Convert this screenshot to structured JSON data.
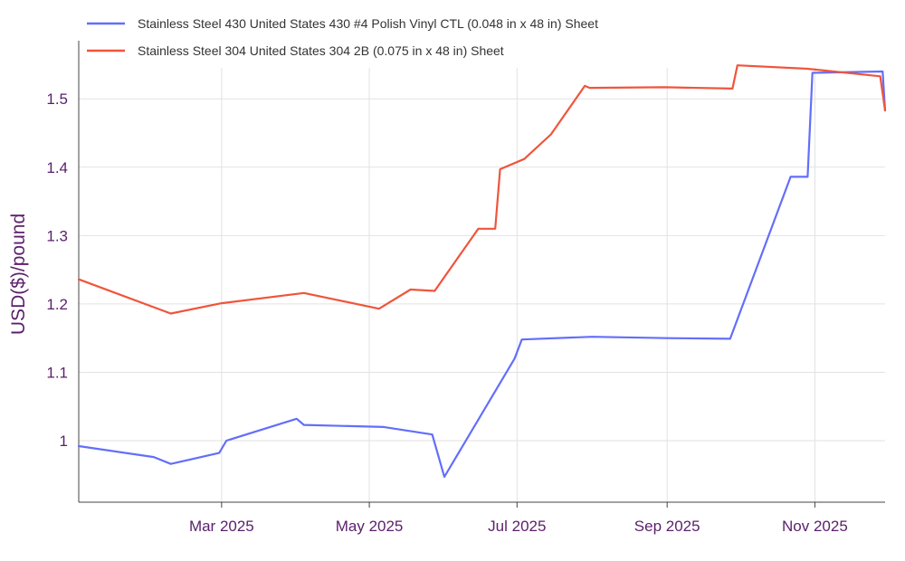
{
  "chart_data": {
    "type": "line",
    "title": "",
    "xlabel": "",
    "ylabel": "USD($)/pound",
    "xlim": [
      "2025-01-01",
      "2025-11-30"
    ],
    "ylim": [
      0.91,
      1.585
    ],
    "grid": true,
    "legend_position": "top-left",
    "x_ticks": [
      {
        "date": "2025-03-01",
        "label": "Mar 2025"
      },
      {
        "date": "2025-05-01",
        "label": "May 2025"
      },
      {
        "date": "2025-07-01",
        "label": "Jul 2025"
      },
      {
        "date": "2025-09-01",
        "label": "Sep 2025"
      },
      {
        "date": "2025-11-01",
        "label": "Nov 2025"
      }
    ],
    "y_ticks": [
      {
        "value": 1.0,
        "label": "1"
      },
      {
        "value": 1.1,
        "label": "1.1"
      },
      {
        "value": 1.2,
        "label": "1.2"
      },
      {
        "value": 1.3,
        "label": "1.3"
      },
      {
        "value": 1.4,
        "label": "1.4"
      },
      {
        "value": 1.5,
        "label": "1.5"
      }
    ],
    "series": [
      {
        "name": "Stainless Steel 430 United States 430 #4 Polish Vinyl CTL (0.048 in x 48 in) Sheet",
        "color": "#636efa",
        "points": [
          [
            "2025-01-01",
            0.992
          ],
          [
            "2025-02-01",
            0.976
          ],
          [
            "2025-02-08",
            0.966
          ],
          [
            "2025-02-28",
            0.982
          ],
          [
            "2025-03-03",
            1.0
          ],
          [
            "2025-04-01",
            1.032
          ],
          [
            "2025-04-04",
            1.023
          ],
          [
            "2025-05-07",
            1.02
          ],
          [
            "2025-05-27",
            1.009
          ],
          [
            "2025-06-01",
            0.947
          ],
          [
            "2025-06-30",
            1.12
          ],
          [
            "2025-07-03",
            1.148
          ],
          [
            "2025-08-01",
            1.152
          ],
          [
            "2025-09-01",
            1.15
          ],
          [
            "2025-09-27",
            1.149
          ],
          [
            "2025-10-22",
            1.386
          ],
          [
            "2025-10-29",
            1.386
          ],
          [
            "2025-10-31",
            1.538
          ],
          [
            "2025-11-29",
            1.54
          ],
          [
            "2025-11-30",
            1.483
          ]
        ]
      },
      {
        "name": "Stainless Steel 304 United States 304 2B (0.075 in x 48 in) Sheet",
        "color": "#ef553b",
        "points": [
          [
            "2025-01-01",
            1.236
          ],
          [
            "2025-02-08",
            1.186
          ],
          [
            "2025-03-01",
            1.201
          ],
          [
            "2025-04-04",
            1.216
          ],
          [
            "2025-05-05",
            1.193
          ],
          [
            "2025-05-18",
            1.221
          ],
          [
            "2025-05-28",
            1.219
          ],
          [
            "2025-06-15",
            1.31
          ],
          [
            "2025-06-22",
            1.31
          ],
          [
            "2025-06-24",
            1.397
          ],
          [
            "2025-07-04",
            1.412
          ],
          [
            "2025-07-15",
            1.448
          ],
          [
            "2025-07-29",
            1.519
          ],
          [
            "2025-07-31",
            1.516
          ],
          [
            "2025-08-31",
            1.517
          ],
          [
            "2025-09-28",
            1.515
          ],
          [
            "2025-09-30",
            1.549
          ],
          [
            "2025-10-29",
            1.544
          ],
          [
            "2025-11-28",
            1.533
          ],
          [
            "2025-11-30",
            1.483
          ]
        ]
      }
    ]
  }
}
